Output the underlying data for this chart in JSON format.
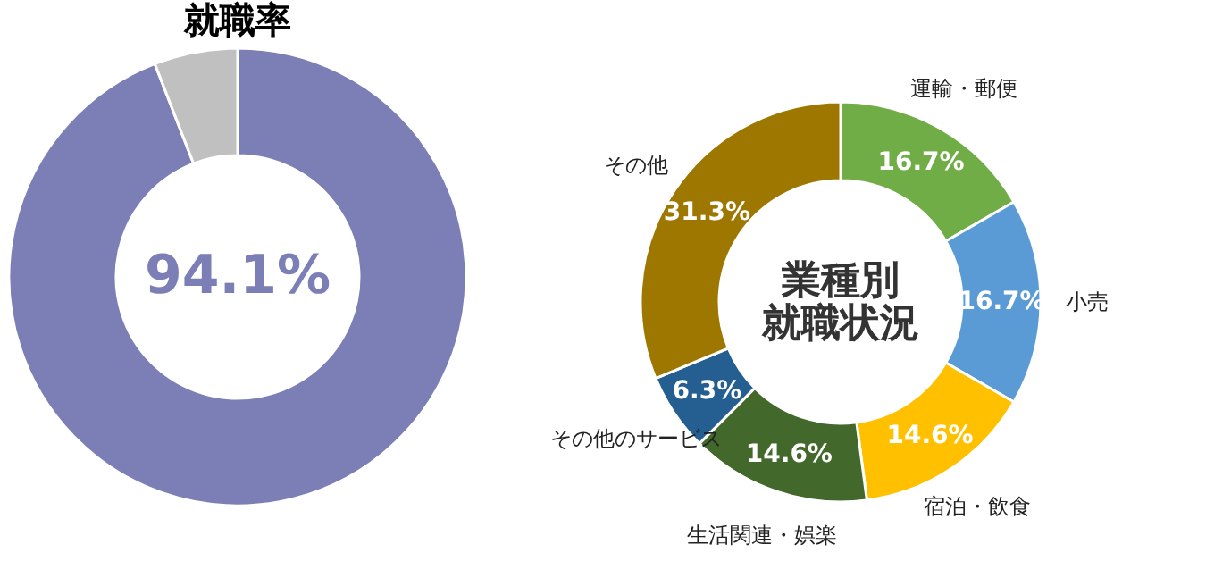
{
  "chart_data": [
    {
      "type": "donut",
      "title": "就職率",
      "categories": [
        null,
        null
      ],
      "values": [
        94.1,
        5.9
      ],
      "colors": [
        "#7b7fb5",
        "#c0c0c0"
      ],
      "annotations": [
        "94.1%"
      ]
    },
    {
      "type": "donut",
      "title": "業種別",
      "subtitle": "就職状況",
      "categories": [
        "運輸・郵便",
        "小売",
        "宿泊・飲食",
        "生活関連・娯楽",
        "その他のサービス",
        "その他"
      ],
      "values": [
        16.7,
        16.7,
        14.6,
        14.6,
        6.3,
        31.3
      ],
      "colors": [
        "#70ad47",
        "#5b9bd5",
        "#ffc000",
        "#43682b",
        "#255e91",
        "#9e7700"
      ],
      "value_labels": [
        "16.7%",
        "16.7%",
        "14.6%",
        "14.6%",
        "6.3%",
        "31.3%"
      ]
    }
  ]
}
